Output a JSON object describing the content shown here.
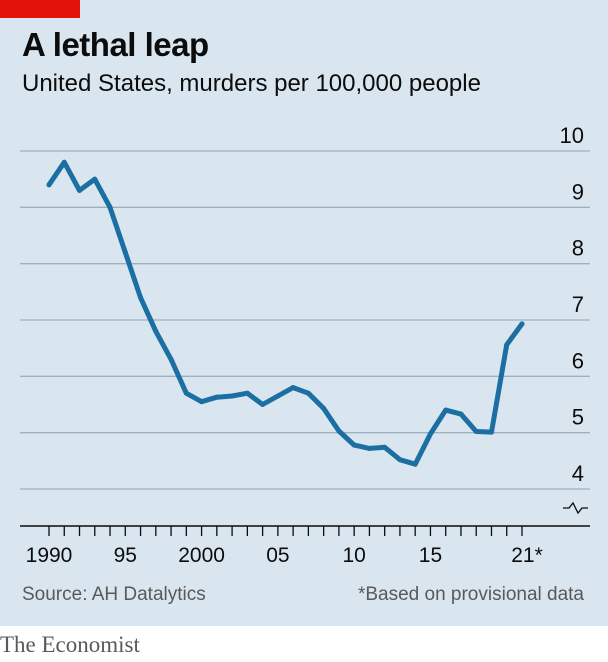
{
  "brand": "The Economist",
  "source": "Source: AH Datalytics",
  "footnote": "*Based on provisional data",
  "colors": {
    "accent_tag": "#e3120b",
    "line": "#1c6fa2",
    "background": "#dae6ef"
  },
  "chart_data": {
    "type": "line",
    "title": "A lethal leap",
    "subtitle": "United States, murders per 100,000 people",
    "xlabel": "",
    "ylabel": "",
    "xlim": [
      1990,
      2021
    ],
    "ylim": [
      4,
      10
    ],
    "y_axis_broken": true,
    "grid": true,
    "x_ticks": [
      {
        "value": 1990,
        "label": "1990"
      },
      {
        "value": 1995,
        "label": "95"
      },
      {
        "value": 2000,
        "label": "2000"
      },
      {
        "value": 2005,
        "label": "05"
      },
      {
        "value": 2010,
        "label": "10"
      },
      {
        "value": 2015,
        "label": "15"
      },
      {
        "value": 2021,
        "label": "21*"
      }
    ],
    "y_ticks": [
      {
        "value": 4,
        "label": "4"
      },
      {
        "value": 5,
        "label": "5"
      },
      {
        "value": 6,
        "label": "6"
      },
      {
        "value": 7,
        "label": "7"
      },
      {
        "value": 8,
        "label": "8"
      },
      {
        "value": 9,
        "label": "9"
      },
      {
        "value": 10,
        "label": "10"
      }
    ],
    "series": [
      {
        "x": [
          1990,
          1991,
          1992,
          1993,
          1994,
          1995,
          1996,
          1997,
          1998,
          1999,
          2000,
          2001,
          2002,
          2003,
          2004,
          2005,
          2006,
          2007,
          2008,
          2009,
          2010,
          2011,
          2012,
          2013,
          2014,
          2015,
          2016,
          2017,
          2018,
          2019,
          2020,
          2021
        ],
        "values": [
          9.4,
          9.8,
          9.3,
          9.5,
          9.0,
          8.2,
          7.4,
          6.8,
          6.3,
          5.7,
          5.55,
          5.63,
          5.65,
          5.7,
          5.5,
          5.65,
          5.8,
          5.7,
          5.43,
          5.03,
          4.78,
          4.72,
          4.74,
          4.52,
          4.44,
          4.98,
          5.4,
          5.33,
          5.02,
          5.01,
          6.56,
          6.93
        ]
      }
    ]
  }
}
